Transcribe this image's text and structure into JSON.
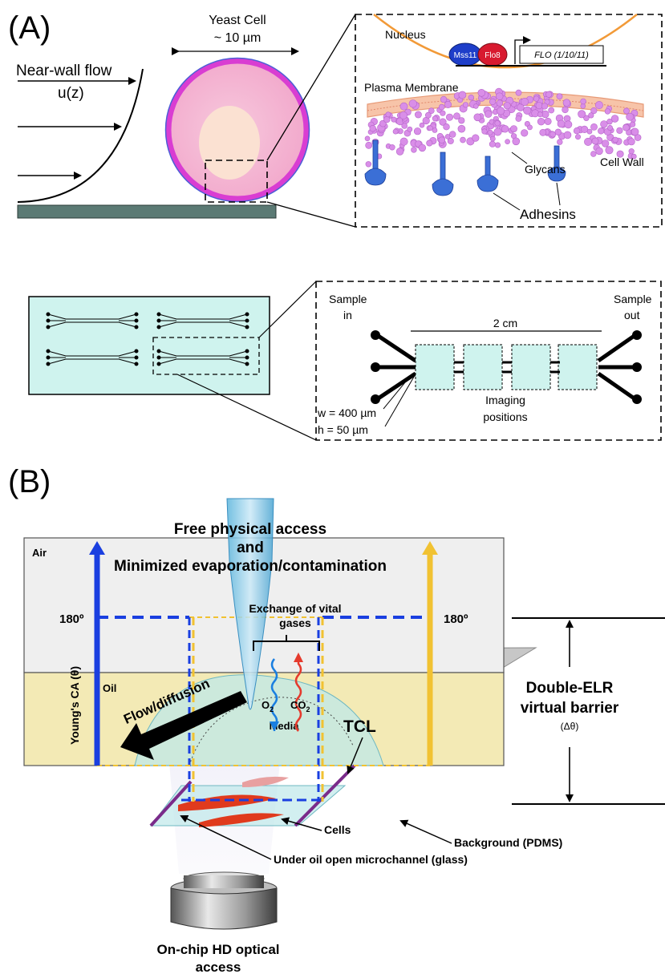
{
  "panel_a": {
    "label": "(A)",
    "flow_label": "Near-wall flow",
    "flow_func": "u(z)",
    "cell_title": "Yeast Cell",
    "cell_size": "~ 10 µm",
    "inset_nucleus": "Nucleus",
    "inset_protein_1": "Mss11",
    "inset_protein_2": "Flo8",
    "inset_gene": "FLO (1/10/11)",
    "inset_membrane": "Plasma Membrane",
    "inset_glycans": "Glycans",
    "inset_cell_wall": "Cell Wall",
    "inset_adhesins": "Adhesins",
    "chip_sample_in_1": "Sample",
    "chip_sample_in_2": "in",
    "chip_sample_out_1": "Sample",
    "chip_sample_out_2": "out",
    "chip_length": "2 cm",
    "chip_imaging_1": "Imaging",
    "chip_imaging_2": "positions",
    "chip_width": "w = 400 µm",
    "chip_height": "h =  50 µm"
  },
  "panel_b": {
    "label": "(B)",
    "title_line1": "Free physical access",
    "title_line2": "and",
    "title_line3": "Minimized evaporation/contamination",
    "air_label": "Air",
    "oil_label": "Oil",
    "angle_left": "180º",
    "angle_right": "180º",
    "y_axis_label": "Young's CA (θ)",
    "exchange_line1": "Exchange of vital",
    "exchange_line2": "gases",
    "o2_label": "O",
    "o2_sub": "2",
    "co2_label": "CO",
    "co2_sub": "2",
    "flow_label": "Flow/diffusion",
    "tcl_label": "TCL",
    "media_label": "Media",
    "cells_label": "Cells",
    "background_label": "Background (PDMS)",
    "channel_label": "Under oil open microchannel (glass)",
    "barrier_line1": "Double-ELR",
    "barrier_line2": "virtual barrier",
    "barrier_sub": "(Δθ)",
    "optical_line1": "On-chip HD optical",
    "optical_line2": "access"
  },
  "colors": {
    "blue_arrow": "#1a3fe0",
    "yellow_arrow": "#f1c232",
    "oil_fill": "#f3eab5",
    "chip_fill": "#cff3ee",
    "cell_outer": "#e53ad6",
    "cell_inner": "#f9c8d9",
    "nucleus_arc": "#f29a38",
    "glycan": "#d88ee8",
    "adhesin": "#3b6fd6",
    "cells_red": "#e03a1d"
  }
}
